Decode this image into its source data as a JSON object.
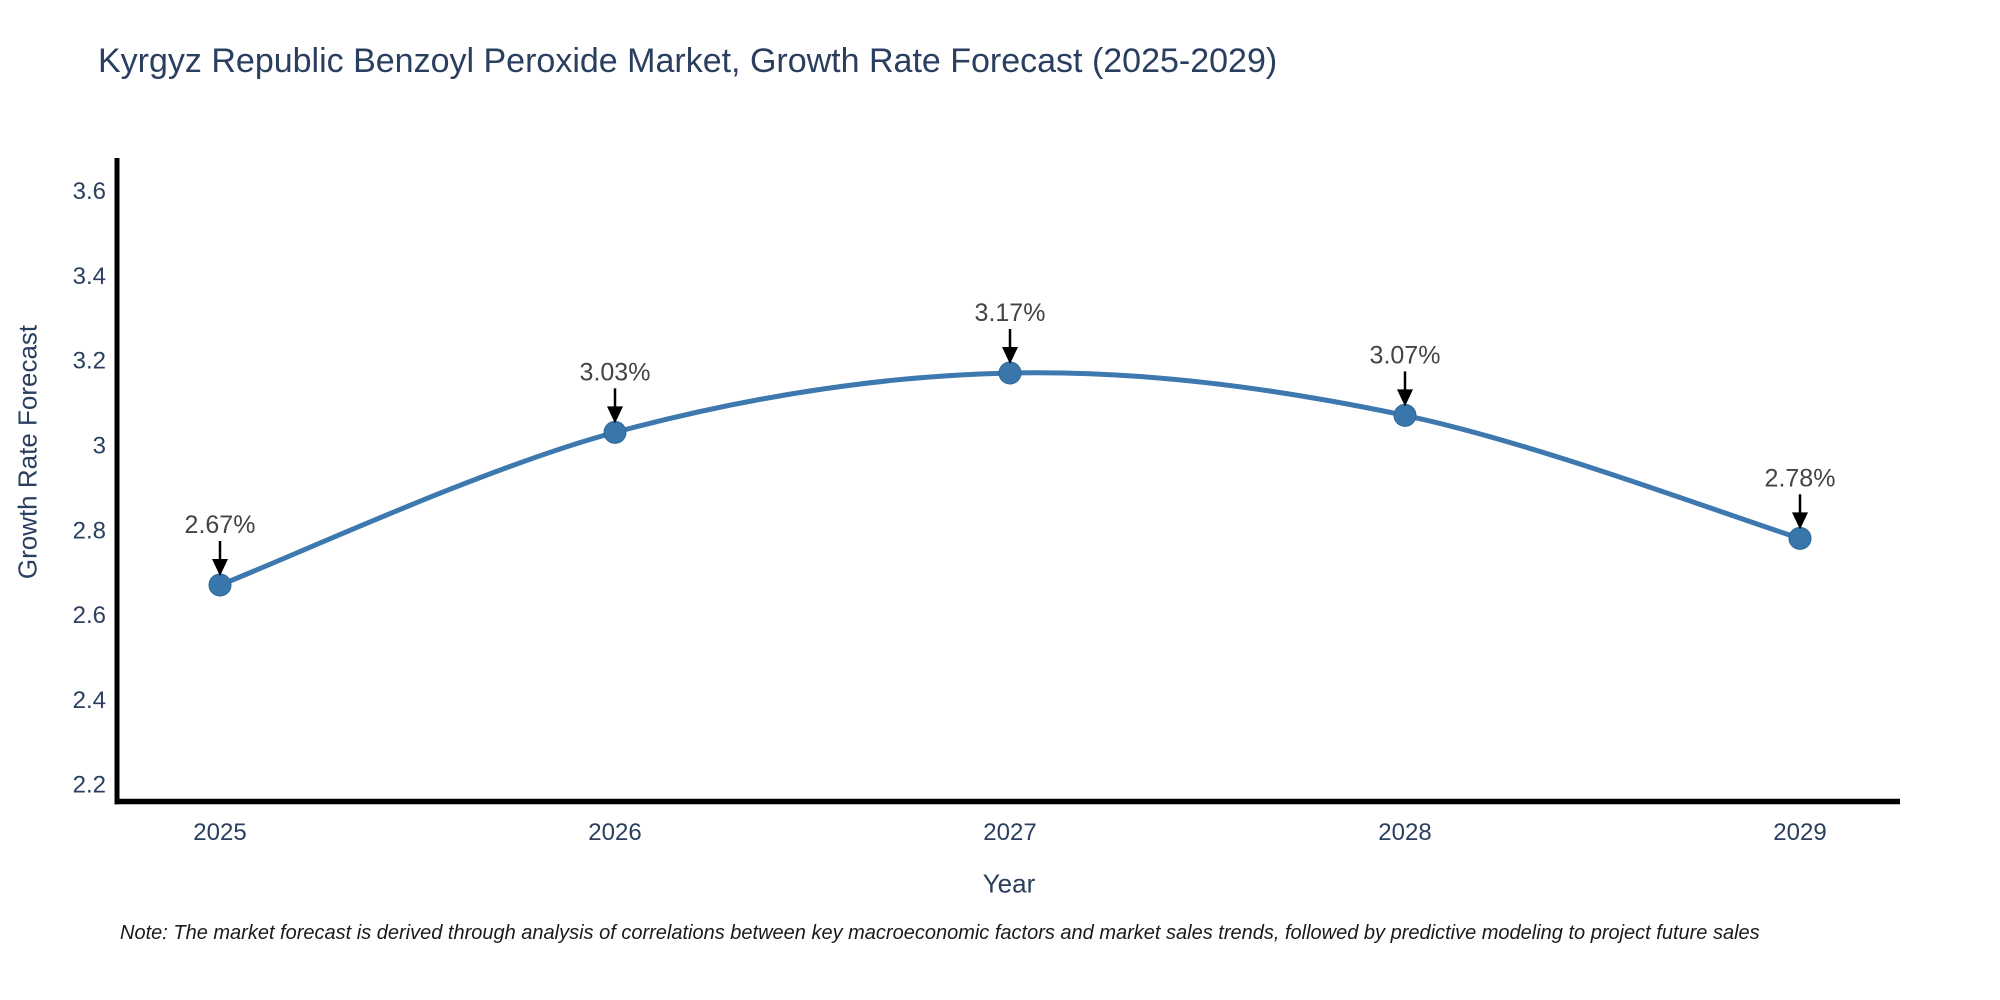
{
  "note": {
    "text": "Note: The market forecast is derived through analysis of correlations between key macroeconomic factors and market sales trends, followed by predictive modeling to project future sales"
  },
  "chart_data": {
    "type": "line",
    "title": "Kyrgyz Republic Benzoyl Peroxide Market, Growth Rate Forecast (2025-2029)",
    "xlabel": "Year",
    "ylabel": "Growth Rate Forecast",
    "categories": [
      "2025",
      "2026",
      "2027",
      "2028",
      "2029"
    ],
    "values": [
      2.67,
      3.03,
      3.17,
      3.07,
      2.78
    ],
    "point_labels": [
      "2.67%",
      "3.03%",
      "3.17%",
      "3.07%",
      "2.78%"
    ],
    "series_name": "Growth Rate Forecast",
    "ytick_values": [
      2.2,
      2.4,
      2.6,
      2.8,
      3,
      3.2,
      3.4,
      3.6
    ],
    "ytick_labels": [
      "2.2",
      "2.4",
      "2.6",
      "2.8",
      "3",
      "3.2",
      "3.4",
      "3.6"
    ],
    "ylim": [
      2.16,
      3.68
    ],
    "grid": false,
    "legend_position": "none",
    "line_shape": "spline",
    "colors": {
      "line": "#3D78AF",
      "marker": "#3876AC",
      "marker_edge": "#2F6697",
      "axis": "#000000",
      "tick_text": "#2a3f5f",
      "title_text": "#2a3f5f",
      "annotation_text": "#444444",
      "arrow": "#000000",
      "background": "#ffffff"
    }
  }
}
